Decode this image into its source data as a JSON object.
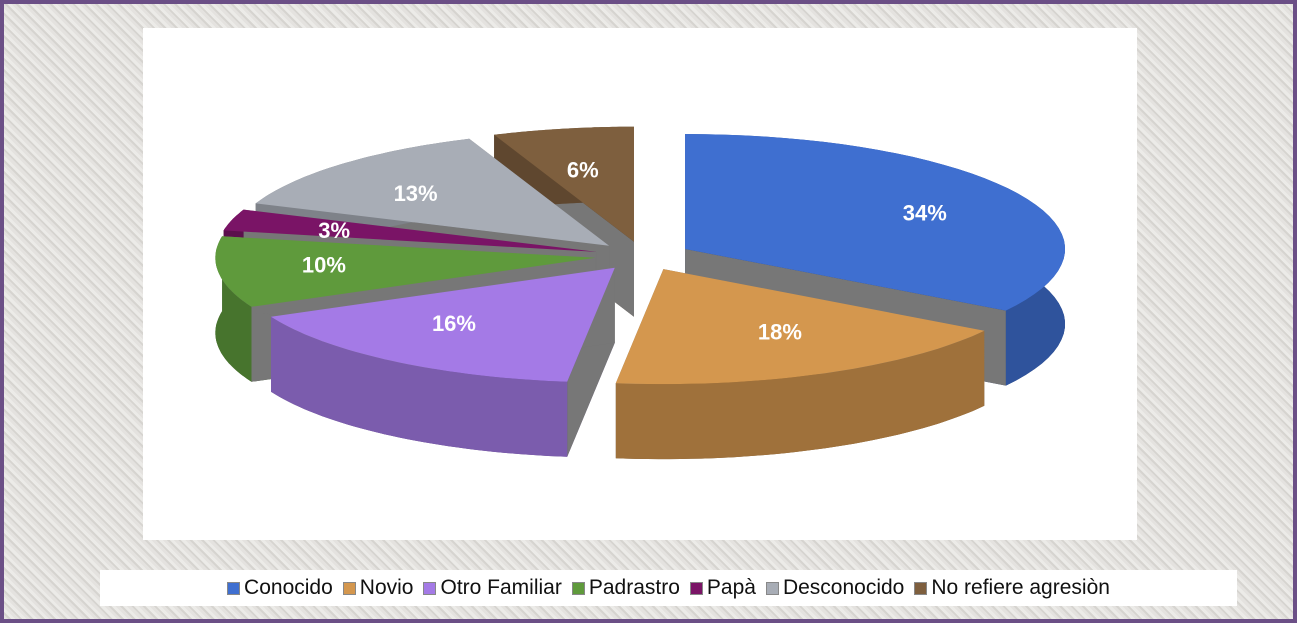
{
  "chart_data": {
    "type": "pie",
    "categories": [
      "Conocido",
      "Novio",
      "Otro Familiar",
      "Padrastro",
      "Papà",
      "Desconocido",
      "No refiere agresiòn"
    ],
    "values": [
      34,
      18,
      16,
      10,
      3,
      13,
      6
    ],
    "value_labels": [
      "34%",
      "18%",
      "16%",
      "10%",
      "3%",
      "13%",
      "6%"
    ],
    "colors": [
      "#3f6fd0",
      "#d4974e",
      "#a47ae6",
      "#5f9a3c",
      "#7a1466",
      "#a8adb6",
      "#7e5f3e"
    ],
    "legend": "bottom"
  }
}
